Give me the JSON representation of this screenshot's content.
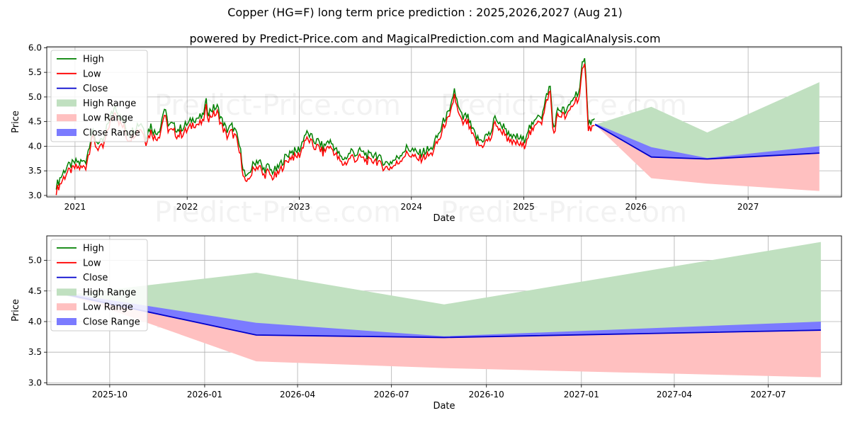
{
  "title": "Copper (HG=F) long term price prediction : 2025,2026,2027 (Aug 21)",
  "subtitle": "powered by Predict-Price.com and MagicalPrediction.com and MagicalAnalysis.com",
  "watermark": "Predict-Price.com",
  "colors": {
    "high": "#008000",
    "low": "#ff0000",
    "close": "#0000cc",
    "high_range": "#c0e0c0",
    "low_range": "#ffc0c0",
    "close_range": "#7b7bff"
  },
  "chart_data": [
    {
      "type": "line",
      "xlabel": "Date",
      "ylabel": "Price",
      "ylim": [
        2.97,
        6.02
      ],
      "xlim": [
        "2020-10-01",
        "2027-11-01"
      ],
      "xticks": [
        {
          "date": "2021-01-01",
          "label": "2021"
        },
        {
          "date": "2022-01-01",
          "label": "2022"
        },
        {
          "date": "2023-01-01",
          "label": "2023"
        },
        {
          "date": "2024-01-01",
          "label": "2024"
        },
        {
          "date": "2025-01-01",
          "label": "2025"
        },
        {
          "date": "2026-01-01",
          "label": "2026"
        },
        {
          "date": "2027-01-01",
          "label": "2027"
        }
      ],
      "yticks": [
        {
          "value": 3.0,
          "label": "3.0"
        },
        {
          "value": 3.5,
          "label": "3.5"
        },
        {
          "value": 4.0,
          "label": "4.0"
        },
        {
          "value": 4.5,
          "label": "4.5"
        },
        {
          "value": 5.0,
          "label": "5.0"
        },
        {
          "value": 5.5,
          "label": "5.5"
        },
        {
          "value": 6.0,
          "label": "6.0"
        }
      ],
      "grid": true,
      "legend_position": "upper-left",
      "legend": [
        "High",
        "Low",
        "Close",
        "High Range",
        "Low Range",
        "Close Range"
      ],
      "history": [
        [
          "2020-11-01",
          3.14
        ],
        [
          "2020-11-20",
          3.35
        ],
        [
          "2020-12-05",
          3.52
        ],
        [
          "2020-12-20",
          3.56
        ],
        [
          "2021-01-05",
          3.62
        ],
        [
          "2021-01-20",
          3.6
        ],
        [
          "2021-02-05",
          3.65
        ],
        [
          "2021-02-15",
          3.92
        ],
        [
          "2021-02-25",
          4.25
        ],
        [
          "2021-03-10",
          4.05
        ],
        [
          "2021-03-25",
          4.0
        ],
        [
          "2021-04-05",
          4.05
        ],
        [
          "2021-04-20",
          4.45
        ],
        [
          "2021-05-05",
          4.65
        ],
        [
          "2021-05-12",
          4.8
        ],
        [
          "2021-05-25",
          4.52
        ],
        [
          "2021-06-10",
          4.42
        ],
        [
          "2021-06-20",
          4.2
        ],
        [
          "2021-07-05",
          4.25
        ],
        [
          "2021-07-20",
          4.35
        ],
        [
          "2021-08-05",
          4.42
        ],
        [
          "2021-08-20",
          4.15
        ],
        [
          "2021-09-05",
          4.35
        ],
        [
          "2021-09-20",
          4.2
        ],
        [
          "2021-10-05",
          4.3
        ],
        [
          "2021-10-18",
          4.72
        ],
        [
          "2021-10-30",
          4.4
        ],
        [
          "2021-11-15",
          4.35
        ],
        [
          "2021-12-01",
          4.28
        ],
        [
          "2021-12-20",
          4.32
        ],
        [
          "2022-01-05",
          4.4
        ],
        [
          "2022-01-20",
          4.5
        ],
        [
          "2022-02-05",
          4.5
        ],
        [
          "2022-02-20",
          4.52
        ],
        [
          "2022-03-05",
          4.85
        ],
        [
          "2022-03-10",
          4.62
        ],
        [
          "2022-03-25",
          4.7
        ],
        [
          "2022-04-10",
          4.72
        ],
        [
          "2022-04-25",
          4.45
        ],
        [
          "2022-05-10",
          4.25
        ],
        [
          "2022-05-25",
          4.35
        ],
        [
          "2022-06-10",
          4.2
        ],
        [
          "2022-06-25",
          3.8
        ],
        [
          "2022-07-05",
          3.42
        ],
        [
          "2022-07-15",
          3.25
        ],
        [
          "2022-07-25",
          3.45
        ],
        [
          "2022-08-10",
          3.62
        ],
        [
          "2022-08-25",
          3.65
        ],
        [
          "2022-09-05",
          3.45
        ],
        [
          "2022-09-20",
          3.52
        ],
        [
          "2022-10-05",
          3.42
        ],
        [
          "2022-10-20",
          3.45
        ],
        [
          "2022-11-05",
          3.62
        ],
        [
          "2022-11-20",
          3.72
        ],
        [
          "2022-12-05",
          3.85
        ],
        [
          "2022-12-20",
          3.82
        ],
        [
          "2023-01-05",
          3.9
        ],
        [
          "2023-01-20",
          4.2
        ],
        [
          "2023-02-05",
          4.15
        ],
        [
          "2023-02-20",
          4.02
        ],
        [
          "2023-03-05",
          4.05
        ],
        [
          "2023-03-20",
          3.9
        ],
        [
          "2023-04-05",
          4.05
        ],
        [
          "2023-04-20",
          3.98
        ],
        [
          "2023-05-05",
          3.82
        ],
        [
          "2023-05-20",
          3.68
        ],
        [
          "2023-06-05",
          3.72
        ],
        [
          "2023-06-20",
          3.85
        ],
        [
          "2023-07-05",
          3.78
        ],
        [
          "2023-07-20",
          3.82
        ],
        [
          "2023-08-05",
          3.78
        ],
        [
          "2023-08-20",
          3.72
        ],
        [
          "2023-09-05",
          3.8
        ],
        [
          "2023-09-20",
          3.68
        ],
        [
          "2023-10-05",
          3.62
        ],
        [
          "2023-10-20",
          3.6
        ],
        [
          "2023-11-05",
          3.65
        ],
        [
          "2023-11-20",
          3.72
        ],
        [
          "2023-12-05",
          3.85
        ],
        [
          "2023-12-20",
          3.9
        ],
        [
          "2024-01-05",
          3.85
        ],
        [
          "2024-01-20",
          3.78
        ],
        [
          "2024-02-05",
          3.82
        ],
        [
          "2024-02-20",
          3.85
        ],
        [
          "2024-03-05",
          3.88
        ],
        [
          "2024-03-20",
          4.05
        ],
        [
          "2024-04-05",
          4.25
        ],
        [
          "2024-04-20",
          4.55
        ],
        [
          "2024-05-05",
          4.6
        ],
        [
          "2024-05-20",
          5.1
        ],
        [
          "2024-06-01",
          4.72
        ],
        [
          "2024-06-15",
          4.5
        ],
        [
          "2024-07-01",
          4.55
        ],
        [
          "2024-07-15",
          4.3
        ],
        [
          "2024-08-01",
          4.1
        ],
        [
          "2024-08-15",
          4.05
        ],
        [
          "2024-09-01",
          4.15
        ],
        [
          "2024-09-15",
          4.2
        ],
        [
          "2024-10-01",
          4.55
        ],
        [
          "2024-10-15",
          4.35
        ],
        [
          "2024-11-01",
          4.35
        ],
        [
          "2024-11-15",
          4.1
        ],
        [
          "2024-12-01",
          4.12
        ],
        [
          "2024-12-15",
          4.1
        ],
        [
          "2025-01-01",
          4.05
        ],
        [
          "2025-01-15",
          4.3
        ],
        [
          "2025-02-01",
          4.35
        ],
        [
          "2025-02-15",
          4.62
        ],
        [
          "2025-03-01",
          4.55
        ],
        [
          "2025-03-20",
          5.05
        ],
        [
          "2025-03-28",
          5.15
        ],
        [
          "2025-04-07",
          4.25
        ],
        [
          "2025-04-20",
          4.65
        ],
        [
          "2025-05-05",
          4.7
        ],
        [
          "2025-05-20",
          4.62
        ],
        [
          "2025-06-05",
          4.85
        ],
        [
          "2025-06-20",
          5.0
        ],
        [
          "2025-07-01",
          5.05
        ],
        [
          "2025-07-10",
          5.55
        ],
        [
          "2025-07-20",
          5.7
        ],
        [
          "2025-07-30",
          4.4
        ],
        [
          "2025-08-10",
          4.45
        ],
        [
          "2025-08-21",
          4.44
        ]
      ],
      "forecast_start": "2025-08-21",
      "forecast": [
        {
          "date": "2025-08-21",
          "close": 4.44,
          "high": 4.44,
          "low": 4.44,
          "close_hi": 4.46,
          "close_lo": 4.42
        },
        {
          "date": "2026-02-20",
          "close": 3.78,
          "high": 4.8,
          "low": 3.35,
          "close_hi": 3.98,
          "close_lo": 3.78
        },
        {
          "date": "2026-08-21",
          "close": 3.74,
          "high": 4.28,
          "low": 3.24,
          "close_hi": 3.76,
          "close_lo": 3.74
        },
        {
          "date": "2027-08-21",
          "close": 3.86,
          "high": 5.3,
          "low": 3.09,
          "close_hi": 4.0,
          "close_lo": 3.85
        }
      ]
    },
    {
      "type": "line",
      "xlabel": "Date",
      "ylabel": "Price",
      "ylim": [
        2.97,
        5.4
      ],
      "xlim": [
        "2025-08-01",
        "2027-09-10"
      ],
      "xticks": [
        {
          "date": "2025-10-01",
          "label": "2025-10"
        },
        {
          "date": "2026-01-01",
          "label": "2026-01"
        },
        {
          "date": "2026-04-01",
          "label": "2026-04"
        },
        {
          "date": "2026-07-01",
          "label": "2026-07"
        },
        {
          "date": "2026-10-01",
          "label": "2026-10"
        },
        {
          "date": "2027-01-01",
          "label": "2027-01"
        },
        {
          "date": "2027-04-01",
          "label": "2027-04"
        },
        {
          "date": "2027-07-01",
          "label": "2027-07"
        }
      ],
      "yticks": [
        {
          "value": 3.0,
          "label": "3.0"
        },
        {
          "value": 3.5,
          "label": "3.5"
        },
        {
          "value": 4.0,
          "label": "4.0"
        },
        {
          "value": 4.5,
          "label": "4.5"
        },
        {
          "value": 5.0,
          "label": "5.0"
        }
      ],
      "grid": true,
      "legend_position": "upper-left",
      "legend": [
        "High",
        "Low",
        "Close",
        "High Range",
        "Low Range",
        "Close Range"
      ]
    }
  ]
}
